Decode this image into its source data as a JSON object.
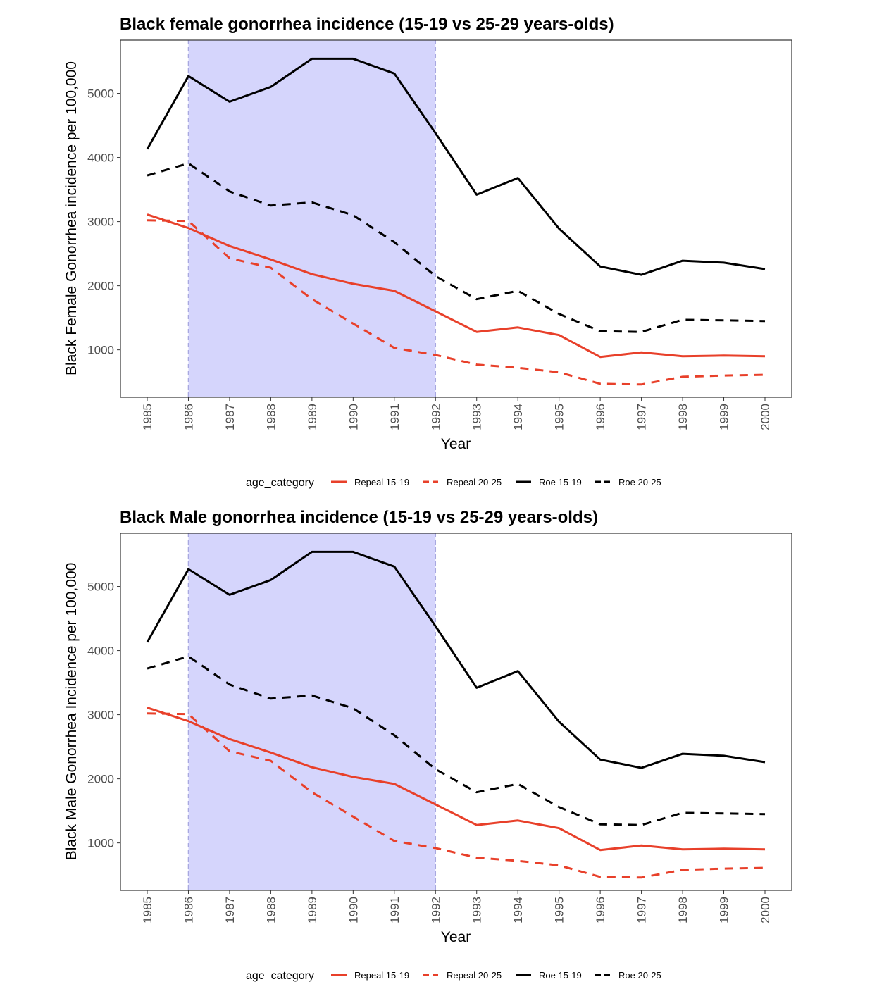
{
  "chart_data": [
    {
      "type": "line",
      "title": "Black female gonorrhea incidence (15-19 vs 25-29 years-olds)",
      "xlabel": "Year",
      "ylabel": "Black Female Gonorrhea incidence per 100,000",
      "x": [
        1985,
        1986,
        1987,
        1988,
        1989,
        1990,
        1991,
        1992,
        1993,
        1994,
        1995,
        1996,
        1997,
        1998,
        1999,
        2000
      ],
      "x_tick_labels": [
        "1985",
        "1986",
        "1987",
        "1988",
        "1989",
        "1990",
        "1991",
        "1992",
        "1993",
        "1994",
        "1995",
        "1996",
        "1997",
        "1998",
        "1999",
        "2000"
      ],
      "y_ticks": [
        1000,
        2000,
        3000,
        4000,
        5000
      ],
      "y_tick_labels": [
        "1000",
        "2000",
        "3000",
        "4000",
        "5000"
      ],
      "xlim": [
        1984.35,
        2000.65
      ],
      "ylim": [
        260,
        5830
      ],
      "shaded_region": {
        "x_start": 1986,
        "x_end": 1992,
        "color": "#d5d5fc",
        "border_color": "#a8a8e0"
      },
      "grid": false,
      "legend": {
        "title": "age_category",
        "position": "bottom",
        "entries": [
          {
            "label": "Repeal 15-19",
            "color": "#e8402a",
            "linetype": "solid"
          },
          {
            "label": "Repeal 20-25",
            "color": "#e8402a",
            "linetype": "dashed"
          },
          {
            "label": "Roe 15-19",
            "color": "#000000",
            "linetype": "solid"
          },
          {
            "label": "Roe 20-25",
            "color": "#000000",
            "linetype": "dashed"
          }
        ]
      },
      "series": [
        {
          "name": "Repeal 15-19",
          "color": "#e8402a",
          "linetype": "solid",
          "x": [
            1985,
            1986,
            1987,
            1988,
            1989,
            1990,
            1991,
            1992,
            1993,
            1994,
            1995,
            1996,
            1997,
            1998,
            1999,
            2000
          ],
          "values": [
            3110,
            2900,
            2620,
            2410,
            2180,
            2030,
            1920,
            1600,
            1280,
            1350,
            1230,
            890,
            960,
            900,
            910,
            900
          ]
        },
        {
          "name": "Repeal 20-25",
          "color": "#e8402a",
          "linetype": "dashed",
          "x": [
            1985,
            1986,
            1987,
            1988,
            1989,
            1990,
            1991,
            1992,
            1993,
            1994,
            1995,
            1996,
            1997,
            1998,
            1999,
            2000
          ],
          "values": [
            3020,
            3010,
            2430,
            2280,
            1790,
            1410,
            1030,
            920,
            770,
            720,
            650,
            470,
            460,
            580,
            600,
            610
          ]
        },
        {
          "name": "Roe 15-19",
          "color": "#000000",
          "linetype": "solid",
          "x": [
            1985,
            1986,
            1987,
            1988,
            1989,
            1990,
            1991,
            1992,
            1993,
            1994,
            1995,
            1996,
            1997,
            1998,
            1999,
            2000
          ],
          "values": [
            4130,
            5270,
            4870,
            5100,
            5540,
            5540,
            5310,
            4380,
            3420,
            3680,
            2890,
            2300,
            2170,
            2390,
            2360,
            2260
          ]
        },
        {
          "name": "Roe 20-25",
          "color": "#000000",
          "linetype": "dashed",
          "x": [
            1985,
            1986,
            1987,
            1988,
            1989,
            1990,
            1991,
            1992,
            1993,
            1994,
            1995,
            1996,
            1997,
            1998,
            1999,
            2000
          ],
          "values": [
            3720,
            3910,
            3470,
            3250,
            3300,
            3100,
            2680,
            2150,
            1790,
            1920,
            1560,
            1290,
            1280,
            1470,
            1460,
            1450
          ]
        }
      ]
    },
    {
      "type": "line",
      "title": "Black Male gonorrhea incidence (15-19 vs 25-29 years-olds)",
      "xlabel": "Year",
      "ylabel": "Black Male Gonorrhea Incidence per 100,000",
      "x": [
        1985,
        1986,
        1987,
        1988,
        1989,
        1990,
        1991,
        1992,
        1993,
        1994,
        1995,
        1996,
        1997,
        1998,
        1999,
        2000
      ],
      "x_tick_labels": [
        "1985",
        "1986",
        "1987",
        "1988",
        "1989",
        "1990",
        "1991",
        "1992",
        "1993",
        "1994",
        "1995",
        "1996",
        "1997",
        "1998",
        "1999",
        "2000"
      ],
      "y_ticks": [
        1000,
        2000,
        3000,
        4000,
        5000
      ],
      "y_tick_labels": [
        "1000",
        "2000",
        "3000",
        "4000",
        "5000"
      ],
      "xlim": [
        1984.35,
        2000.65
      ],
      "ylim": [
        260,
        5830
      ],
      "shaded_region": {
        "x_start": 1986,
        "x_end": 1992,
        "color": "#d5d5fc",
        "border_color": "#a8a8e0"
      },
      "grid": false,
      "legend": {
        "title": "age_category",
        "position": "bottom",
        "entries": [
          {
            "label": "Repeal 15-19",
            "color": "#e8402a",
            "linetype": "solid"
          },
          {
            "label": "Repeal 20-25",
            "color": "#e8402a",
            "linetype": "dashed"
          },
          {
            "label": "Roe 15-19",
            "color": "#000000",
            "linetype": "solid"
          },
          {
            "label": "Roe 20-25",
            "color": "#000000",
            "linetype": "dashed"
          }
        ]
      },
      "series": [
        {
          "name": "Repeal 15-19",
          "color": "#e8402a",
          "linetype": "solid",
          "x": [
            1985,
            1986,
            1987,
            1988,
            1989,
            1990,
            1991,
            1992,
            1993,
            1994,
            1995,
            1996,
            1997,
            1998,
            1999,
            2000
          ],
          "values": [
            3110,
            2900,
            2620,
            2410,
            2180,
            2030,
            1920,
            1600,
            1280,
            1350,
            1230,
            890,
            960,
            900,
            910,
            900
          ]
        },
        {
          "name": "Repeal 20-25",
          "color": "#e8402a",
          "linetype": "dashed",
          "x": [
            1985,
            1986,
            1987,
            1988,
            1989,
            1990,
            1991,
            1992,
            1993,
            1994,
            1995,
            1996,
            1997,
            1998,
            1999,
            2000
          ],
          "values": [
            3020,
            3010,
            2430,
            2280,
            1790,
            1410,
            1030,
            920,
            770,
            720,
            650,
            470,
            460,
            580,
            600,
            610
          ]
        },
        {
          "name": "Roe 15-19",
          "color": "#000000",
          "linetype": "solid",
          "x": [
            1985,
            1986,
            1987,
            1988,
            1989,
            1990,
            1991,
            1992,
            1993,
            1994,
            1995,
            1996,
            1997,
            1998,
            1999,
            2000
          ],
          "values": [
            4130,
            5270,
            4870,
            5100,
            5540,
            5540,
            5310,
            4380,
            3420,
            3680,
            2890,
            2300,
            2170,
            2390,
            2360,
            2260
          ]
        },
        {
          "name": "Roe 20-25",
          "color": "#000000",
          "linetype": "dashed",
          "x": [
            1985,
            1986,
            1987,
            1988,
            1989,
            1990,
            1991,
            1992,
            1993,
            1994,
            1995,
            1996,
            1997,
            1998,
            1999,
            2000
          ],
          "values": [
            3720,
            3910,
            3470,
            3250,
            3300,
            3100,
            2680,
            2150,
            1790,
            1920,
            1560,
            1290,
            1280,
            1470,
            1460,
            1450
          ]
        }
      ]
    }
  ]
}
